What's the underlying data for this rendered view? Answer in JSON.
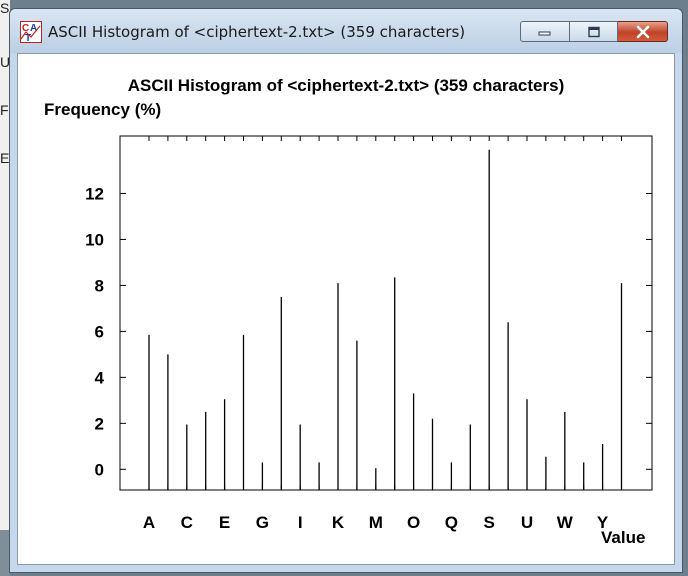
{
  "window": {
    "title": "ASCII Histogram of <ciphertext-2.txt> (359 characters)",
    "icon": "chart-app-icon"
  },
  "background": {
    "letters": [
      "S",
      "U",
      "F",
      "E"
    ]
  },
  "chart_data": {
    "type": "bar",
    "title": "ASCII Histogram of <ciphertext-2.txt> (359 characters)",
    "ylabel": "Frequency (%)",
    "xlabel": "Value",
    "categories": [
      "A",
      "B",
      "C",
      "D",
      "E",
      "F",
      "G",
      "H",
      "I",
      "J",
      "K",
      "L",
      "M",
      "N",
      "O",
      "P",
      "Q",
      "R",
      "S",
      "T",
      "U",
      "V",
      "W",
      "X",
      "Y",
      "Z"
    ],
    "tick_labels": [
      "A",
      "C",
      "E",
      "G",
      "I",
      "K",
      "M",
      "O",
      "Q",
      "S",
      "U",
      "W",
      "Y"
    ],
    "values": [
      5.85,
      5.0,
      1.95,
      2.5,
      3.05,
      5.85,
      0.3,
      7.5,
      1.95,
      0.3,
      8.1,
      5.6,
      0.05,
      8.35,
      3.3,
      2.2,
      0.3,
      1.95,
      13.9,
      6.4,
      3.05,
      0.55,
      2.5,
      0.3,
      1.1,
      8.1
    ],
    "yticks": [
      0,
      2,
      4,
      6,
      8,
      10,
      12
    ],
    "ylim": [
      -0.9,
      14.5
    ],
    "grid": false,
    "legend": "none"
  }
}
